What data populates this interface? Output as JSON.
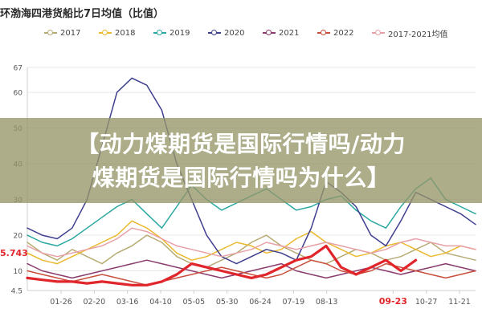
{
  "title": "环渤海四港货船比7日均值（比值）",
  "overlay": {
    "line1": "【动力煤期货是国际行情吗/动力",
    "line2": "煤期货是国际行情吗为什么】"
  },
  "current_value_label": "5.743",
  "chart_data": {
    "type": "line",
    "title": "环渤海四港货船比7日均值（比值）",
    "xlabel": "",
    "ylabel": "",
    "x_ticks": [
      "01-26",
      "02-20",
      "03-16",
      "04-10",
      "05-05",
      "05-30",
      "06-24",
      "07-19",
      "08-13",
      "",
      "09-23",
      "10-27",
      "11-21"
    ],
    "highlighted_tick": "09-23",
    "y_ticks": [
      4.5,
      10,
      20,
      30,
      40,
      50,
      60,
      67
    ],
    "ylim": [
      4.5,
      67
    ],
    "legend_position": "top",
    "grid": true,
    "series": [
      {
        "name": "2017",
        "color": "#b7ab74",
        "values": [
          18,
          15,
          13,
          16,
          14,
          12,
          15,
          17,
          20,
          18,
          14,
          12,
          11,
          13,
          15,
          18,
          20,
          17,
          15,
          13,
          12,
          14,
          16,
          15,
          13,
          14,
          16,
          18,
          15,
          14,
          13
        ]
      },
      {
        "name": "2018",
        "color": "#ebb92d",
        "values": [
          15,
          13,
          12,
          14,
          16,
          18,
          20,
          24,
          22,
          19,
          15,
          13,
          14,
          16,
          18,
          17,
          15,
          16,
          19,
          21,
          18,
          16,
          14,
          15,
          17,
          18,
          16,
          14,
          15,
          17,
          16
        ]
      },
      {
        "name": "2019",
        "color": "#2aa8a1",
        "values": [
          20,
          18,
          17,
          19,
          22,
          25,
          28,
          30,
          26,
          22,
          28,
          34,
          30,
          27,
          29,
          31,
          33,
          30,
          27,
          28,
          30,
          31,
          27,
          24,
          22,
          28,
          33,
          36,
          30,
          28,
          26
        ]
      },
      {
        "name": "2020",
        "color": "#3f3f8f",
        "values": [
          22,
          20,
          19,
          22,
          30,
          45,
          60,
          64,
          62,
          55,
          40,
          30,
          20,
          14,
          12,
          14,
          16,
          15,
          13,
          22,
          35,
          32,
          28,
          20,
          17,
          24,
          32,
          30,
          28,
          26,
          23
        ]
      },
      {
        "name": "2021",
        "color": "#8b3c6e",
        "values": [
          12,
          10,
          9,
          8,
          9,
          10,
          11,
          12,
          13,
          12,
          11,
          10,
          9,
          8,
          9,
          10,
          11,
          12,
          10,
          9,
          8,
          9,
          10,
          11,
          10,
          9,
          10,
          11,
          12,
          11,
          10
        ]
      },
      {
        "name": "2022",
        "color": "#c94f3d",
        "values": [
          10,
          9,
          8,
          7,
          8,
          9,
          8,
          7,
          6,
          7,
          8,
          9,
          10,
          11,
          10,
          9,
          8,
          9,
          11,
          13,
          12,
          10,
          9,
          10,
          12,
          11,
          10,
          9,
          8,
          9,
          10
        ]
      },
      {
        "name": "2017-2021均值",
        "color": "#e8a0a7",
        "values": [
          17,
          15,
          14,
          15,
          16,
          17,
          19,
          22,
          21,
          19,
          17,
          16,
          15,
          14,
          15,
          16,
          18,
          17,
          16,
          17,
          18,
          17,
          16,
          15,
          16,
          18,
          19,
          18,
          17,
          17,
          16
        ]
      },
      {
        "name": "",
        "color": "#e0252b",
        "width": 3.2,
        "values": [
          8,
          7.5,
          7,
          7,
          6.5,
          7,
          6.5,
          6,
          6,
          7,
          9,
          12,
          11,
          10,
          9,
          8,
          9,
          11,
          13,
          14,
          17,
          11,
          9,
          11,
          13,
          10,
          13
        ]
      }
    ]
  },
  "colors": {
    "highlight_band": "#969669",
    "grid": "#e8e8e8",
    "axis_text": "#555555",
    "accent_red": "#e0252b"
  }
}
